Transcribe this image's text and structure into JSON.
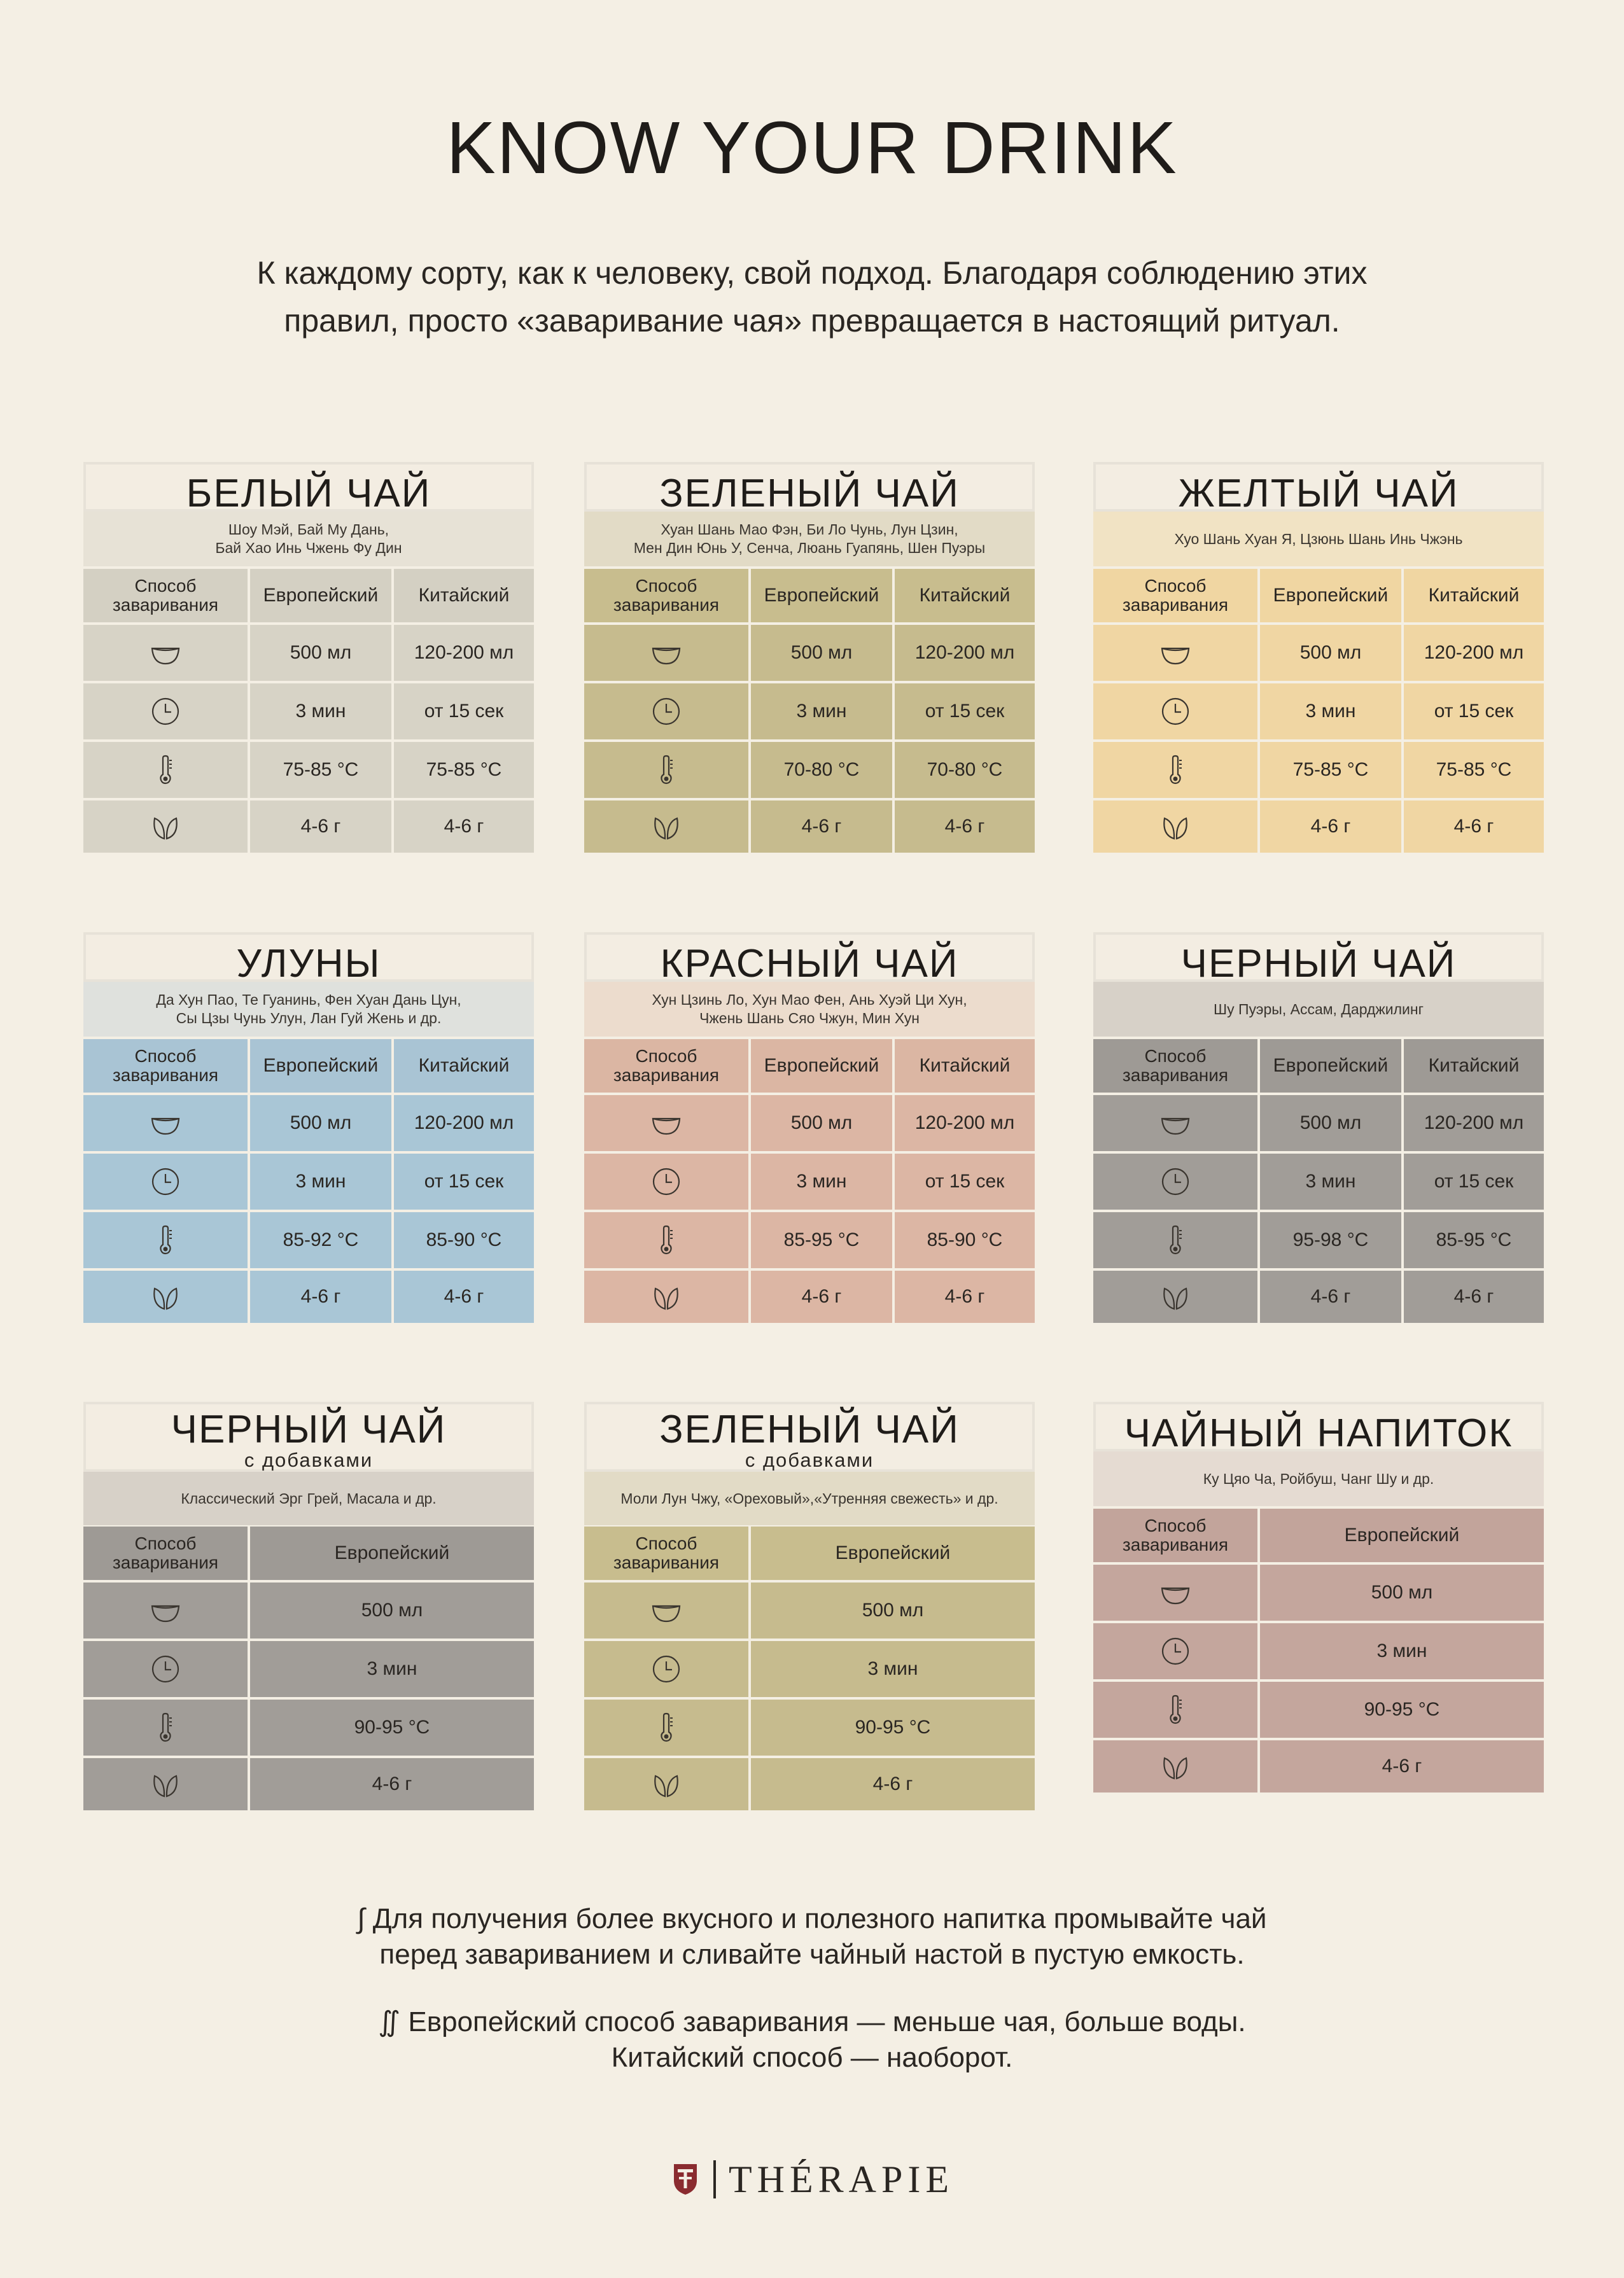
{
  "title": "KNOW YOUR DRINK",
  "intro": "К каждому сорту, как к человеку, свой подход. Благодаря соблюдению этих\nправил, просто «заваривание чая» превращается в настоящий ритуал.",
  "icons": [
    "bowl-icon",
    "clock-icon",
    "thermometer-icon",
    "tea-leaf-icon"
  ],
  "headers": {
    "method": "Способ\nзаваривания",
    "european": "Европейский",
    "chinese": "Китайский"
  },
  "cards": [
    {
      "name": "БЕЛЫЙ ЧАЙ",
      "sub": "",
      "varieties": "Шоу Мэй, Бай Му Дань,\nБай Хао Инь Чжень Фу Дин",
      "colors": {
        "band": "#e7e2d6",
        "hdr": "#d4d0c3",
        "row": "#d7d3c6"
      },
      "eu": [
        "500 мл",
        "3 мин",
        "75-85 °C",
        "4-6 г"
      ],
      "cn": [
        "120-200 мл",
        "от 15 сек",
        "75-85 °C",
        "4-6 г"
      ]
    },
    {
      "name": "ЗЕЛЕНЫЙ ЧАЙ",
      "sub": "",
      "varieties": "Хуан Шань Мао Фэн, Би Ло Чунь, Лун Цзин,\nМен Дин Юнь У, Сенча, Люань Гуапянь, Шен Пуэры",
      "colors": {
        "band": "#e2dbc6",
        "hdr": "#c8bd8e",
        "row": "#c6bb8e"
      },
      "eu": [
        "500 мл",
        "3 мин",
        "70-80 °C",
        "4-6 г"
      ],
      "cn": [
        "120-200 мл",
        "от 15 сек",
        "70-80 °C",
        "4-6 г"
      ]
    },
    {
      "name": "ЖЕЛТЫЙ ЧАЙ",
      "sub": "",
      "varieties": "Хуо Шань Хуан Я, Цзюнь Шань Инь Чжэнь",
      "colors": {
        "band": "#f1e3c4",
        "hdr": "#f0d6a2",
        "row": "#f0d6a3"
      },
      "eu": [
        "500 мл",
        "3 мин",
        "75-85 °C",
        "4-6 г"
      ],
      "cn": [
        "120-200 мл",
        "от 15 сек",
        "75-85 °C",
        "4-6 г"
      ]
    },
    {
      "name": "УЛУНЫ",
      "sub": "",
      "varieties": "Да Хун Пао, Те Гуанинь, Фен Хуан Дань Цун,\nСы Цзы Чунь Улун, Лан Гуй Жень и др.",
      "colors": {
        "band": "#dfe1dd",
        "hdr": "#a9c4d4",
        "row": "#a9c6d6"
      },
      "eu": [
        "500 мл",
        "3 мин",
        "85-92 °C",
        "4-6 г"
      ],
      "cn": [
        "120-200 мл",
        "от 15 сек",
        "85-90 °C",
        "4-6 г"
      ]
    },
    {
      "name": "КРАСНЫЙ ЧАЙ",
      "sub": "",
      "varieties": "Хун Цзинь Ло, Хун Мао Фен, Ань Хуэй Ци Хун,\nЧжень Шань Сяо Чжун, Мин Хун",
      "colors": {
        "band": "#ecdccd",
        "hdr": "#dbb6a3",
        "row": "#dcb6a4"
      },
      "eu": [
        "500 мл",
        "3 мин",
        "85-95 °C",
        "4-6 г"
      ],
      "cn": [
        "120-200 мл",
        "от 15 сек",
        "85-90 °C",
        "4-6 г"
      ]
    },
    {
      "name": "ЧЕРНЫЙ ЧАЙ",
      "sub": "",
      "varieties": "Шу Пуэры, Ассам, Дарджилинг",
      "colors": {
        "band": "#d7d1c8",
        "hdr": "#9e9a95",
        "row": "#a19d98"
      },
      "eu": [
        "500 мл",
        "3 мин",
        "95-98 °C",
        "4-6 г"
      ],
      "cn": [
        "120-200 мл",
        "от 15 сек",
        "85-95 °C",
        "4-6 г"
      ]
    },
    {
      "name": "ЧЕРНЫЙ ЧАЙ",
      "sub": "с добавками",
      "varieties": "Классический Эрг Грей, Масала и др.",
      "colors": {
        "band": "#d7d1c8",
        "hdr": "#9e9a95",
        "row": "#a19d98"
      },
      "eu": [
        "500 мл",
        "3 мин",
        "90-95 °C",
        "4-6 г"
      ],
      "cn": []
    },
    {
      "name": "ЗЕЛЕНЫЙ ЧАЙ",
      "sub": "с добавками",
      "varieties": "Моли Лун Чжу, «Ореховый»,«Утренняя свежесть» и др.",
      "colors": {
        "band": "#e2dbc6",
        "hdr": "#c8bd8e",
        "row": "#c6bb8e"
      },
      "eu": [
        "500 мл",
        "3 мин",
        "90-95 °C",
        "4-6 г"
      ],
      "cn": []
    },
    {
      "name": "ЧАЙНЫЙ НАПИТОК",
      "sub": "",
      "varieties": "Ку Цяо Ча, Ройбуш, Чанг Шу и др.",
      "colors": {
        "band": "#e5dbd2",
        "hdr": "#c2a49b",
        "row": "#c4a69d"
      },
      "eu": [
        "500 мл",
        "3 мин",
        "90-95 °C",
        "4-6 г"
      ],
      "cn": []
    }
  ],
  "footnotes": [
    "∫ Для получения более вкусного и полезного напитка промывайте чай\nперед завариванием и сливайте чайный настой в пустую емкость.",
    "∬ Европейский способ заваривания — меньше чая, больше воды.\nКитайский способ — наоборот."
  ],
  "brand": "THÉRAPIE"
}
